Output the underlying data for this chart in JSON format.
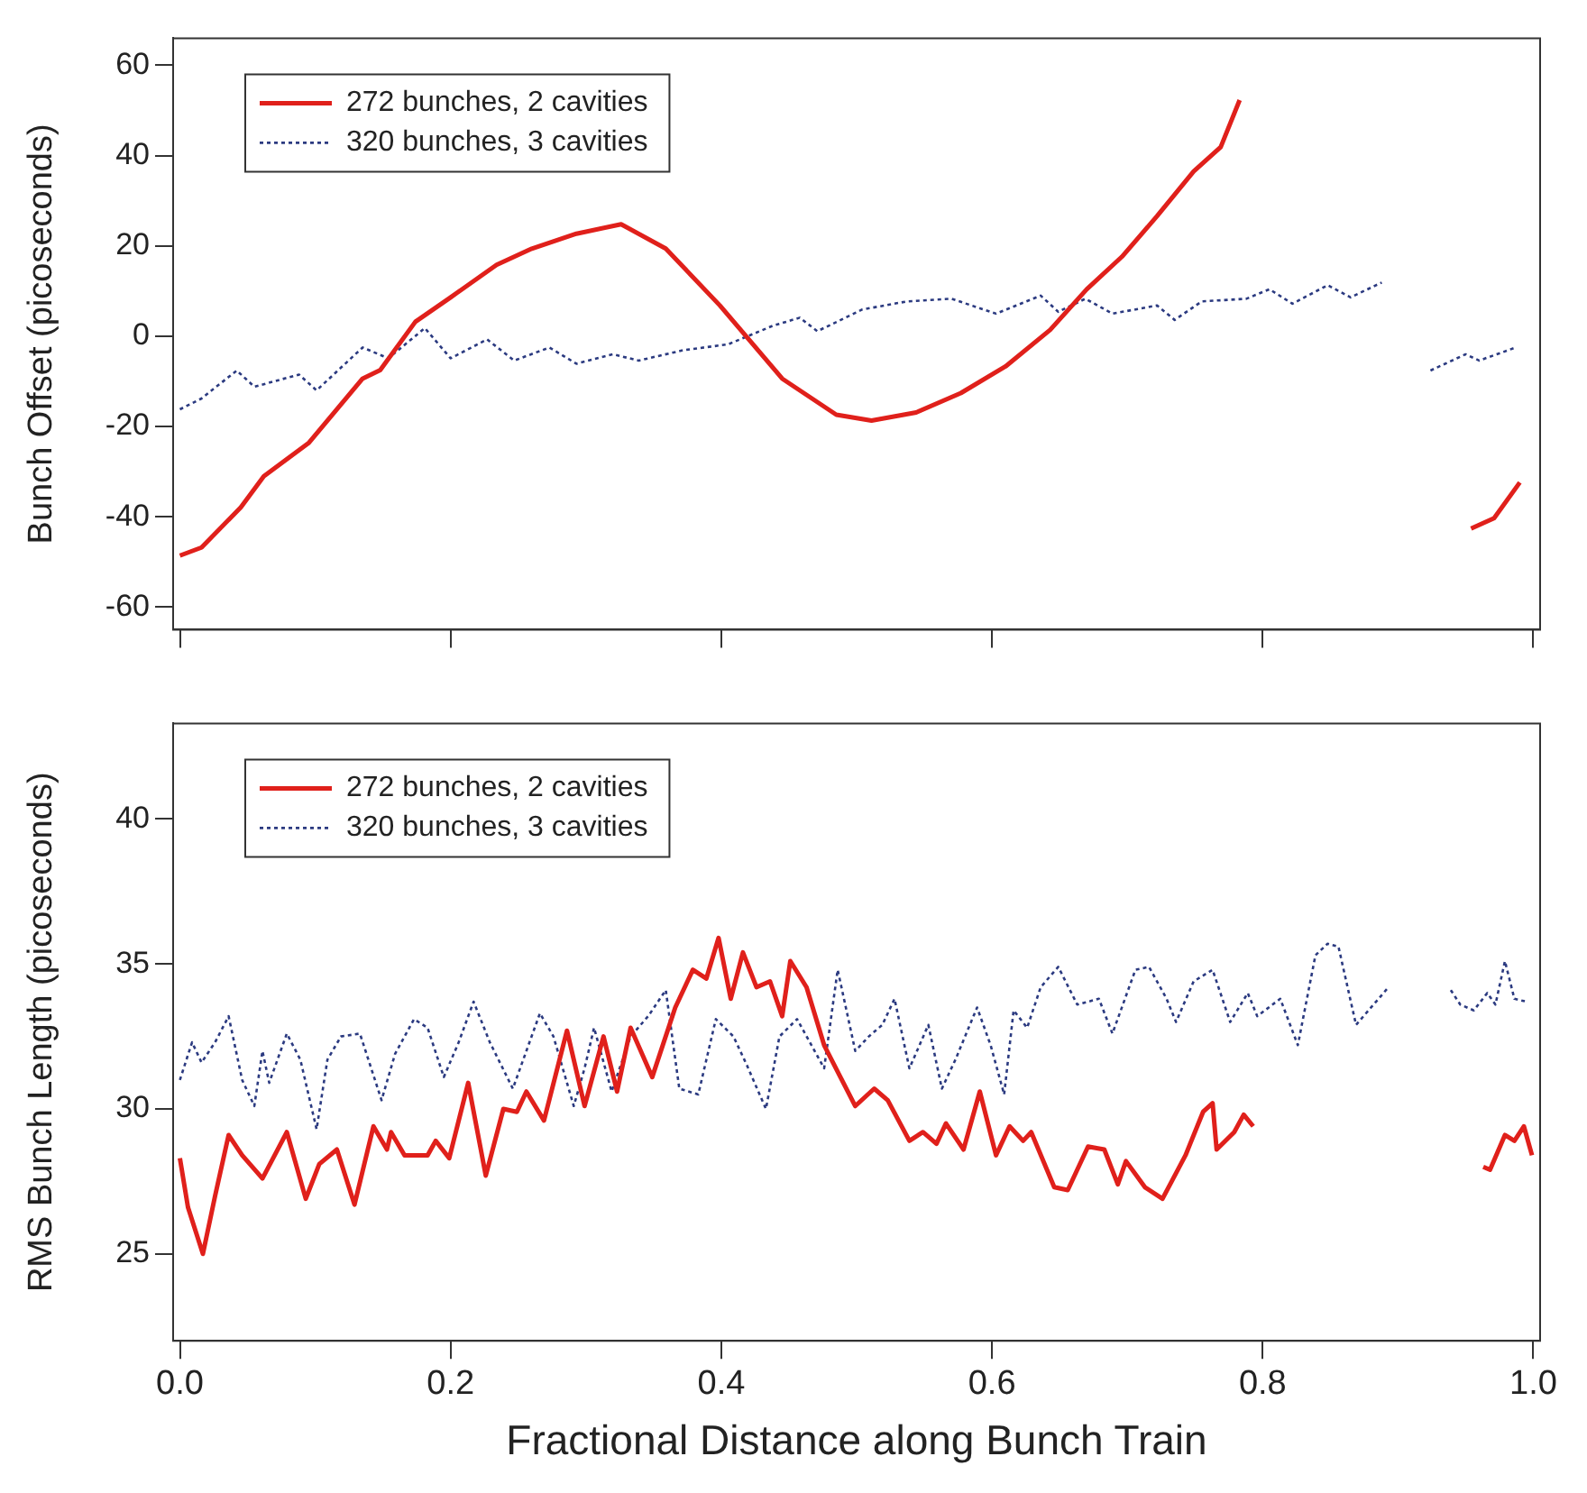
{
  "chart_data": [
    {
      "type": "line",
      "ylabel": "Bunch Offset (picoseconds)",
      "xlim": [
        -0.005,
        1.005
      ],
      "ylim": [
        -65,
        66
      ],
      "xticks": [
        {
          "value": 0,
          "label": null
        },
        {
          "value": 0.2,
          "label": null
        },
        {
          "value": 0.4,
          "label": null
        },
        {
          "value": 0.6,
          "label": null
        },
        {
          "value": 0.8,
          "label": null
        },
        {
          "value": 1,
          "label": null
        }
      ],
      "yticks": [
        -60,
        -40,
        -20,
        0,
        20,
        40,
        60
      ],
      "tick_labels": "y",
      "grid": false,
      "legend": "top left",
      "marker": "none",
      "series": [
        {
          "name": "272 bunches, 2 cavities",
          "color": "#e0201b",
          "line_style": "solid",
          "x": [
            0,
            0.016,
            0.045,
            0.062,
            0.095,
            0.135,
            0.148,
            0.174,
            0.2,
            0.234,
            0.26,
            0.293,
            0.326,
            0.359,
            0.399,
            0.445,
            0.485,
            0.511,
            0.544,
            0.577,
            0.61,
            0.643,
            0.67,
            0.696,
            0.722,
            0.749,
            0.769,
            0.783,
            0.87,
            0.954,
            0.971,
            0.99
          ],
          "values": [
            -48.6,
            -46.8,
            -37.9,
            -31,
            -23.7,
            -9.4,
            -7.5,
            3.2,
            8.6,
            15.8,
            19.4,
            22.7,
            24.8,
            19.4,
            6.8,
            -9.4,
            -17.4,
            -18.7,
            -16.9,
            -12.6,
            -6.7,
            1.4,
            10.4,
            17.6,
            26.6,
            36.5,
            41.9,
            52.3,
            null,
            -42.6,
            -40.3,
            -32.4
          ]
        },
        {
          "name": "320 bunches, 3 cavities",
          "color": "#2b3a80",
          "line_style": "dotted",
          "x": [
            0,
            0.016,
            0.042,
            0.055,
            0.088,
            0.101,
            0.135,
            0.154,
            0.181,
            0.2,
            0.227,
            0.247,
            0.273,
            0.293,
            0.32,
            0.339,
            0.372,
            0.405,
            0.438,
            0.458,
            0.471,
            0.504,
            0.537,
            0.57,
            0.603,
            0.636,
            0.649,
            0.669,
            0.689,
            0.722,
            0.735,
            0.755,
            0.788,
            0.805,
            0.822,
            0.848,
            0.865,
            0.888,
            0.91,
            0.924,
            0.95,
            0.96,
            0.987
          ],
          "values": [
            -16.2,
            -13.8,
            -7.6,
            -11.2,
            -8.5,
            -12,
            -2.5,
            -4.9,
            1.8,
            -4.9,
            -0.7,
            -5.4,
            -2.5,
            -6.1,
            -4,
            -5.4,
            -3.1,
            -1.8,
            2.3,
            4.1,
            1.1,
            5.9,
            7.7,
            8.3,
            5,
            9,
            5.4,
            8.3,
            5,
            6.8,
            3.6,
            7.7,
            8.3,
            10.4,
            7.2,
            11.3,
            8.6,
            11.9,
            null,
            -7.6,
            -4,
            -5.4,
            -2.5
          ]
        }
      ]
    },
    {
      "type": "line",
      "xlabel": "Fractional Distance along Bunch Train",
      "ylabel": "RMS Bunch Length (picoseconds)",
      "xlim": [
        -0.005,
        1.005
      ],
      "ylim": [
        22,
        43.3
      ],
      "xticks": [
        {
          "value": 0,
          "label": "0.0"
        },
        0.2,
        0.4,
        0.6,
        0.8,
        {
          "value": 1,
          "label": "1.0"
        }
      ],
      "yticks": [
        25,
        30,
        35,
        40
      ],
      "grid": false,
      "legend": "top left",
      "marker": "none",
      "series": [
        {
          "name": "272 bunches, 2 cavities",
          "color": "#e0201b",
          "line_style": "solid",
          "x": [
            0,
            0.006,
            0.017,
            0.026,
            0.036,
            0.046,
            0.061,
            0.079,
            0.093,
            0.103,
            0.116,
            0.129,
            0.143,
            0.153,
            0.156,
            0.166,
            0.183,
            0.189,
            0.199,
            0.213,
            0.226,
            0.239,
            0.249,
            0.256,
            0.269,
            0.286,
            0.299,
            0.313,
            0.323,
            0.333,
            0.349,
            0.366,
            0.379,
            0.389,
            0.398,
            0.407,
            0.416,
            0.426,
            0.436,
            0.445,
            0.451,
            0.463,
            0.476,
            0.499,
            0.513,
            0.523,
            0.539,
            0.549,
            0.559,
            0.566,
            0.579,
            0.591,
            0.603,
            0.613,
            0.623,
            0.629,
            0.646,
            0.656,
            0.671,
            0.683,
            0.693,
            0.699,
            0.713,
            0.726,
            0.743,
            0.756,
            0.763,
            0.766,
            0.779,
            0.786,
            0.793,
            0.88,
            0.963,
            0.968,
            0.979,
            0.986,
            0.993,
            0.999
          ],
          "values": [
            28.3,
            26.6,
            25,
            27,
            29.1,
            28.4,
            27.6,
            29.2,
            26.9,
            28.1,
            28.6,
            26.7,
            29.4,
            28.6,
            29.2,
            28.4,
            28.4,
            28.9,
            28.3,
            30.9,
            27.7,
            30,
            29.9,
            30.6,
            29.6,
            32.7,
            30.1,
            32.5,
            30.6,
            32.8,
            31.1,
            33.5,
            34.8,
            34.5,
            35.9,
            33.8,
            35.4,
            34.2,
            34.4,
            33.2,
            35.1,
            34.2,
            32.2,
            30.1,
            30.7,
            30.3,
            28.9,
            29.2,
            28.8,
            29.5,
            28.6,
            30.6,
            28.4,
            29.4,
            28.9,
            29.2,
            27.3,
            27.2,
            28.7,
            28.6,
            27.4,
            28.2,
            27.3,
            26.9,
            28.4,
            29.9,
            30.2,
            28.6,
            29.2,
            29.8,
            29.4,
            null,
            28,
            27.9,
            29.1,
            28.9,
            29.4,
            28.4
          ]
        },
        {
          "name": "320 bunches, 3 cavities",
          "color": "#2b3a80",
          "line_style": "dotted",
          "x": [
            0,
            0.009,
            0.016,
            0.026,
            0.036,
            0.046,
            0.055,
            0.061,
            0.066,
            0.079,
            0.089,
            0.101,
            0.109,
            0.119,
            0.133,
            0.149,
            0.159,
            0.173,
            0.183,
            0.195,
            0.206,
            0.217,
            0.229,
            0.246,
            0.256,
            0.266,
            0.276,
            0.291,
            0.299,
            0.306,
            0.319,
            0.333,
            0.346,
            0.359,
            0.369,
            0.383,
            0.396,
            0.409,
            0.419,
            0.433,
            0.443,
            0.456,
            0.476,
            0.486,
            0.499,
            0.509,
            0.519,
            0.528,
            0.539,
            0.553,
            0.563,
            0.573,
            0.589,
            0.599,
            0.609,
            0.616,
            0.626,
            0.636,
            0.649,
            0.663,
            0.679,
            0.689,
            0.706,
            0.716,
            0.729,
            0.736,
            0.749,
            0.763,
            0.776,
            0.789,
            0.796,
            0.813,
            0.826,
            0.839,
            0.848,
            0.856,
            0.869,
            0.893,
            0.915,
            0.939,
            0.946,
            0.956,
            0.966,
            0.972,
            0.979,
            0.986,
            0.995
          ],
          "values": [
            31,
            32.3,
            31.6,
            32.3,
            33.2,
            31,
            30.1,
            32,
            30.9,
            32.6,
            31.7,
            29.3,
            31.7,
            32.5,
            32.6,
            30.3,
            31.9,
            33.1,
            32.8,
            31.1,
            32.3,
            33.7,
            32.3,
            30.7,
            32,
            33.3,
            32.5,
            30.1,
            31.4,
            32.8,
            30.6,
            32.5,
            33.2,
            34.1,
            30.7,
            30.5,
            33.1,
            32.5,
            31.5,
            30,
            32.5,
            33.1,
            31.4,
            34.8,
            32,
            32.5,
            32.9,
            33.8,
            31.4,
            32.9,
            30.7,
            31.7,
            33.5,
            32.2,
            30.5,
            33.4,
            32.8,
            34.2,
            34.9,
            33.6,
            33.8,
            32.6,
            34.8,
            34.9,
            33.8,
            33,
            34.4,
            34.8,
            33,
            34,
            33.2,
            33.8,
            32.2,
            35.3,
            35.7,
            35.6,
            32.9,
            34.2,
            null,
            34.1,
            33.6,
            33.4,
            34,
            33.6,
            35.1,
            33.8,
            33.7
          ]
        }
      ]
    }
  ]
}
